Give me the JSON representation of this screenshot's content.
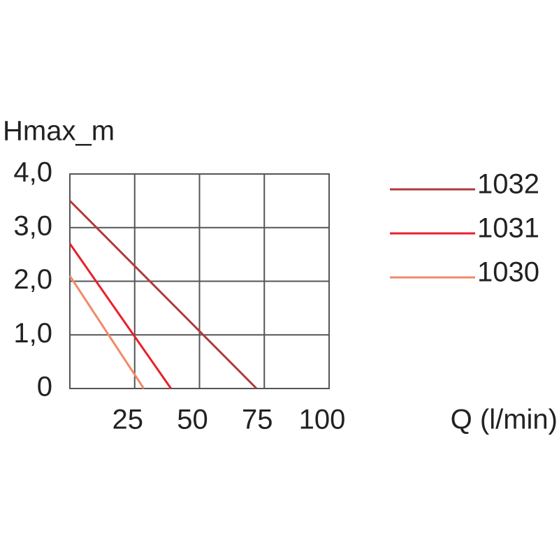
{
  "chart_data": {
    "type": "line",
    "y_label": "Hmax_m",
    "x_label": "Q (l/min)",
    "series": [
      {
        "name": "1032",
        "color": "#b03a3a",
        "x": [
          0,
          72
        ],
        "values": [
          3.5,
          0
        ]
      },
      {
        "name": "1031",
        "color": "#e8202a",
        "x": [
          0,
          39
        ],
        "values": [
          2.7,
          0
        ]
      },
      {
        "name": "1030",
        "color": "#f08a6a",
        "x": [
          0,
          28.5
        ],
        "values": [
          2.1,
          0
        ]
      }
    ],
    "xlim": [
      0,
      100
    ],
    "xticks": [
      25,
      50,
      75,
      100
    ],
    "ylim": [
      0,
      4
    ],
    "yticks": [
      0,
      {
        "value": 1,
        "label": "1,0"
      },
      {
        "value": 2,
        "label": "2,0"
      },
      {
        "value": 3,
        "label": "3,0"
      },
      {
        "value": 4,
        "label": "4,0"
      }
    ],
    "grid": true,
    "legend": "right"
  }
}
